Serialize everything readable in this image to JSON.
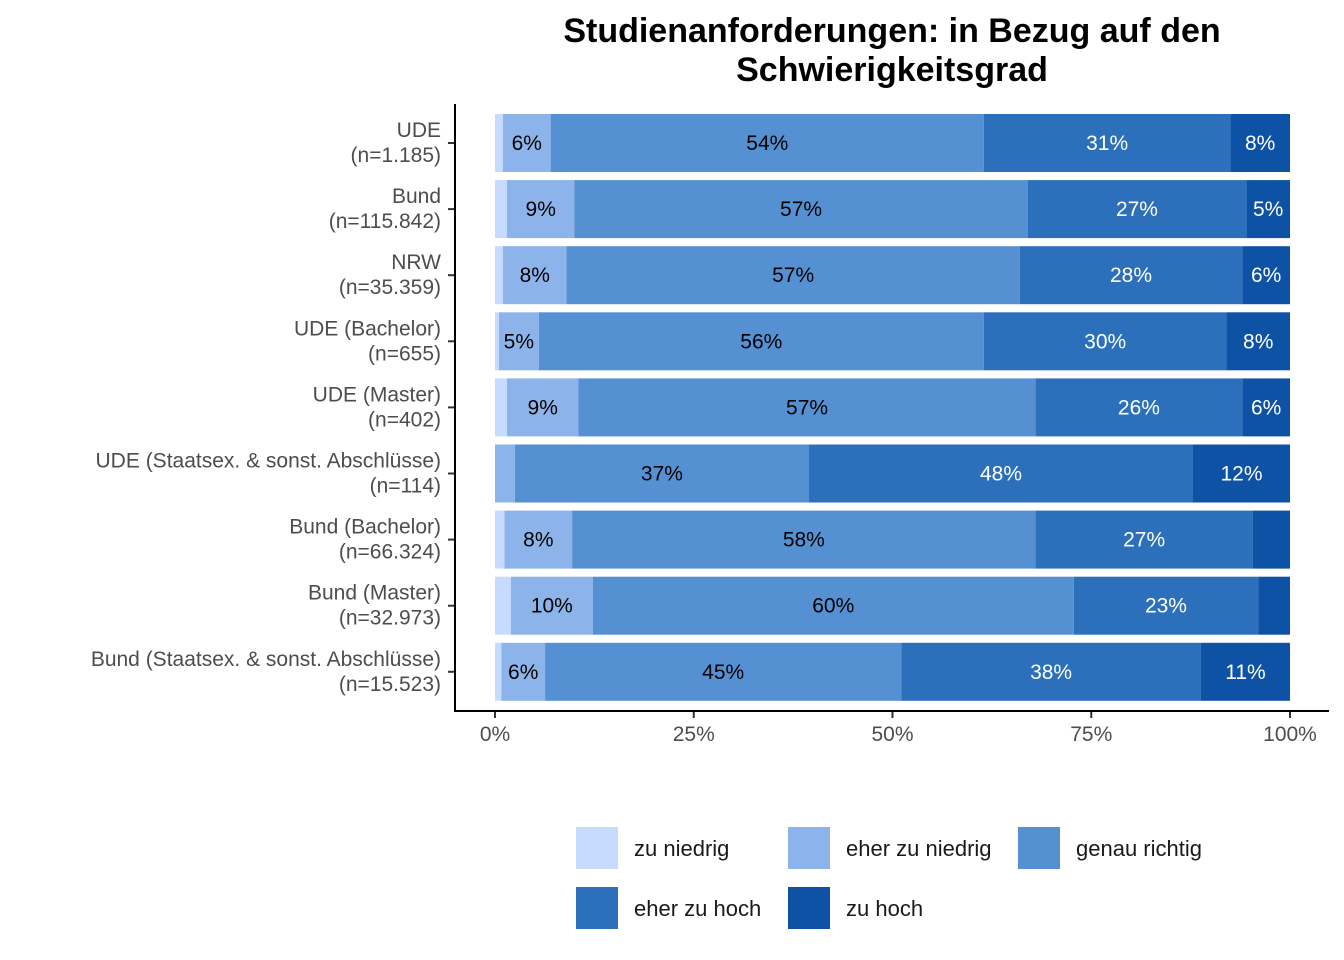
{
  "chart_data": {
    "type": "bar",
    "orientation": "horizontal",
    "stacked": true,
    "title_lines": [
      "Studienanforderungen: in Bezug auf den",
      "Schwierigkeitsgrad"
    ],
    "xlabel": "",
    "ylabel": "",
    "xlim": [
      0,
      100
    ],
    "x_ticks": [
      "0%",
      "25%",
      "50%",
      "75%",
      "100%"
    ],
    "grid": false,
    "legend_position": "bottom",
    "categories": [
      {
        "name": "UDE",
        "n": "(n=1.185)"
      },
      {
        "name": "Bund",
        "n": "(n=115.842)"
      },
      {
        "name": "NRW",
        "n": "(n=35.359)"
      },
      {
        "name": "UDE (Bachelor)",
        "n": "(n=655)"
      },
      {
        "name": "UDE (Master)",
        "n": "(n=402)"
      },
      {
        "name": "UDE (Staatsex. & sonst. Abschlüsse)",
        "n": "(n=114)"
      },
      {
        "name": "Bund (Bachelor)",
        "n": "(n=66.324)"
      },
      {
        "name": "Bund (Master)",
        "n": "(n=32.973)"
      },
      {
        "name": "Bund (Staatsex. & sonst. Abschlüsse)",
        "n": "(n=15.523)"
      }
    ],
    "series": [
      {
        "name": "zu niedrig",
        "color": "#c6dbff",
        "label_color": "#000000",
        "values": [
          1,
          1.5,
          1,
          0.5,
          1.5,
          0,
          1.2,
          2,
          0.8
        ],
        "labels": [
          "",
          "",
          "",
          "",
          "",
          "",
          "",
          "",
          ""
        ]
      },
      {
        "name": "eher zu niedrig",
        "color": "#8db4ea",
        "label_color": "#000000",
        "values": [
          6,
          8.5,
          8,
          5,
          9,
          2.5,
          8.5,
          10.3,
          5.5
        ],
        "labels": [
          "6%",
          "9%",
          "8%",
          "5%",
          "9%",
          "",
          "8%",
          "10%",
          "6%"
        ]
      },
      {
        "name": "genau richtig",
        "color": "#5591d2",
        "label_color": "#000000",
        "values": [
          54.5,
          57,
          57,
          56,
          57.5,
          37,
          58.3,
          60.5,
          44.8
        ],
        "labels": [
          "54%",
          "57%",
          "57%",
          "56%",
          "57%",
          "37%",
          "58%",
          "60%",
          "45%"
        ]
      },
      {
        "name": "eher zu hoch",
        "color": "#2c70bb",
        "label_color": "#ffffff",
        "values": [
          31,
          27.5,
          28,
          30.5,
          26,
          48.3,
          27.3,
          23.2,
          37.7
        ],
        "labels": [
          "31%",
          "27%",
          "28%",
          "30%",
          "26%",
          "48%",
          "27%",
          "23%",
          "38%"
        ]
      },
      {
        "name": "zu hoch",
        "color": "#0d52a5",
        "label_color": "#ffffff",
        "values": [
          7.5,
          5.5,
          6,
          8,
          6,
          12.2,
          4.7,
          4,
          11.2
        ],
        "labels": [
          "8%",
          "5%",
          "6%",
          "8%",
          "6%",
          "12%",
          "",
          "",
          "11%"
        ]
      }
    ]
  }
}
